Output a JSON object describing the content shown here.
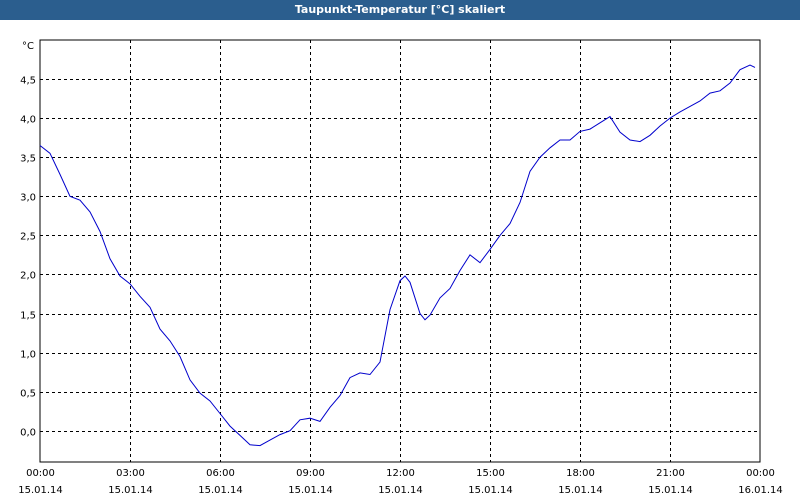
{
  "window": {
    "title": "Taupunkt-Temperatur [°C] skaliert"
  },
  "chart_data": {
    "type": "line",
    "title": "Taupunkt-Temperatur [°C] skaliert",
    "xlabel": "",
    "ylabel": "°C",
    "ylim": [
      -0.4,
      5.0
    ],
    "xlim_hours": [
      0,
      24
    ],
    "grid": true,
    "y_ticks": [
      "0,0",
      "0,5",
      "1,0",
      "1,5",
      "2,0",
      "2,5",
      "3,0",
      "3,5",
      "4,0",
      "4,5"
    ],
    "x_ticks": [
      {
        "time": "00:00",
        "date": "15.01.14"
      },
      {
        "time": "03:00",
        "date": "15.01.14"
      },
      {
        "time": "06:00",
        "date": "15.01.14"
      },
      {
        "time": "09:00",
        "date": "15.01.14"
      },
      {
        "time": "12:00",
        "date": "15.01.14"
      },
      {
        "time": "15:00",
        "date": "15.01.14"
      },
      {
        "time": "18:00",
        "date": "15.01.14"
      },
      {
        "time": "21:00",
        "date": "15.01.14"
      },
      {
        "time": "00:00",
        "date": "16.01.14"
      }
    ],
    "series": [
      {
        "color": "#0000cc",
        "x": [
          "00:00",
          "00:20",
          "00:40",
          "01:00",
          "01:20",
          "01:40",
          "02:00",
          "02:20",
          "02:40",
          "03:00",
          "03:20",
          "03:40",
          "04:00",
          "04:20",
          "04:40",
          "05:00",
          "05:20",
          "05:40",
          "06:00",
          "06:20",
          "06:40",
          "07:00",
          "07:20",
          "07:40",
          "08:00",
          "08:20",
          "08:40",
          "09:00",
          "09:20",
          "09:40",
          "10:00",
          "10:20",
          "10:40",
          "11:00",
          "11:20",
          "11:40",
          "12:00",
          "12:10",
          "12:20",
          "12:40",
          "12:50",
          "13:00",
          "13:20",
          "13:40",
          "14:00",
          "14:20",
          "14:40",
          "15:00",
          "15:20",
          "15:40",
          "16:00",
          "16:20",
          "16:40",
          "17:00",
          "17:20",
          "17:40",
          "18:00",
          "18:20",
          "18:40",
          "19:00",
          "19:20",
          "19:40",
          "20:00",
          "20:20",
          "20:40",
          "21:00",
          "21:20",
          "21:40",
          "22:00",
          "22:20",
          "22:40",
          "23:00",
          "23:20",
          "23:40",
          "23:50"
        ],
        "values": [
          3.65,
          3.55,
          3.28,
          3.0,
          2.95,
          2.8,
          2.55,
          2.2,
          1.98,
          1.88,
          1.72,
          1.58,
          1.3,
          1.15,
          0.95,
          0.65,
          0.48,
          0.38,
          0.22,
          0.06,
          -0.06,
          -0.18,
          -0.19,
          -0.12,
          -0.05,
          0.0,
          0.14,
          0.16,
          0.12,
          0.3,
          0.45,
          0.68,
          0.74,
          0.72,
          0.88,
          1.55,
          1.92,
          1.98,
          1.9,
          1.5,
          1.42,
          1.48,
          1.7,
          1.82,
          2.05,
          2.25,
          2.15,
          2.32,
          2.5,
          2.65,
          2.92,
          3.32,
          3.5,
          3.62,
          3.72,
          3.72,
          3.83,
          3.86,
          3.94,
          4.02,
          3.82,
          3.72,
          3.7,
          3.78,
          3.9,
          4.0,
          4.08,
          4.15,
          4.22,
          4.32,
          4.35,
          4.45,
          4.62,
          4.68,
          4.65
        ]
      }
    ]
  }
}
